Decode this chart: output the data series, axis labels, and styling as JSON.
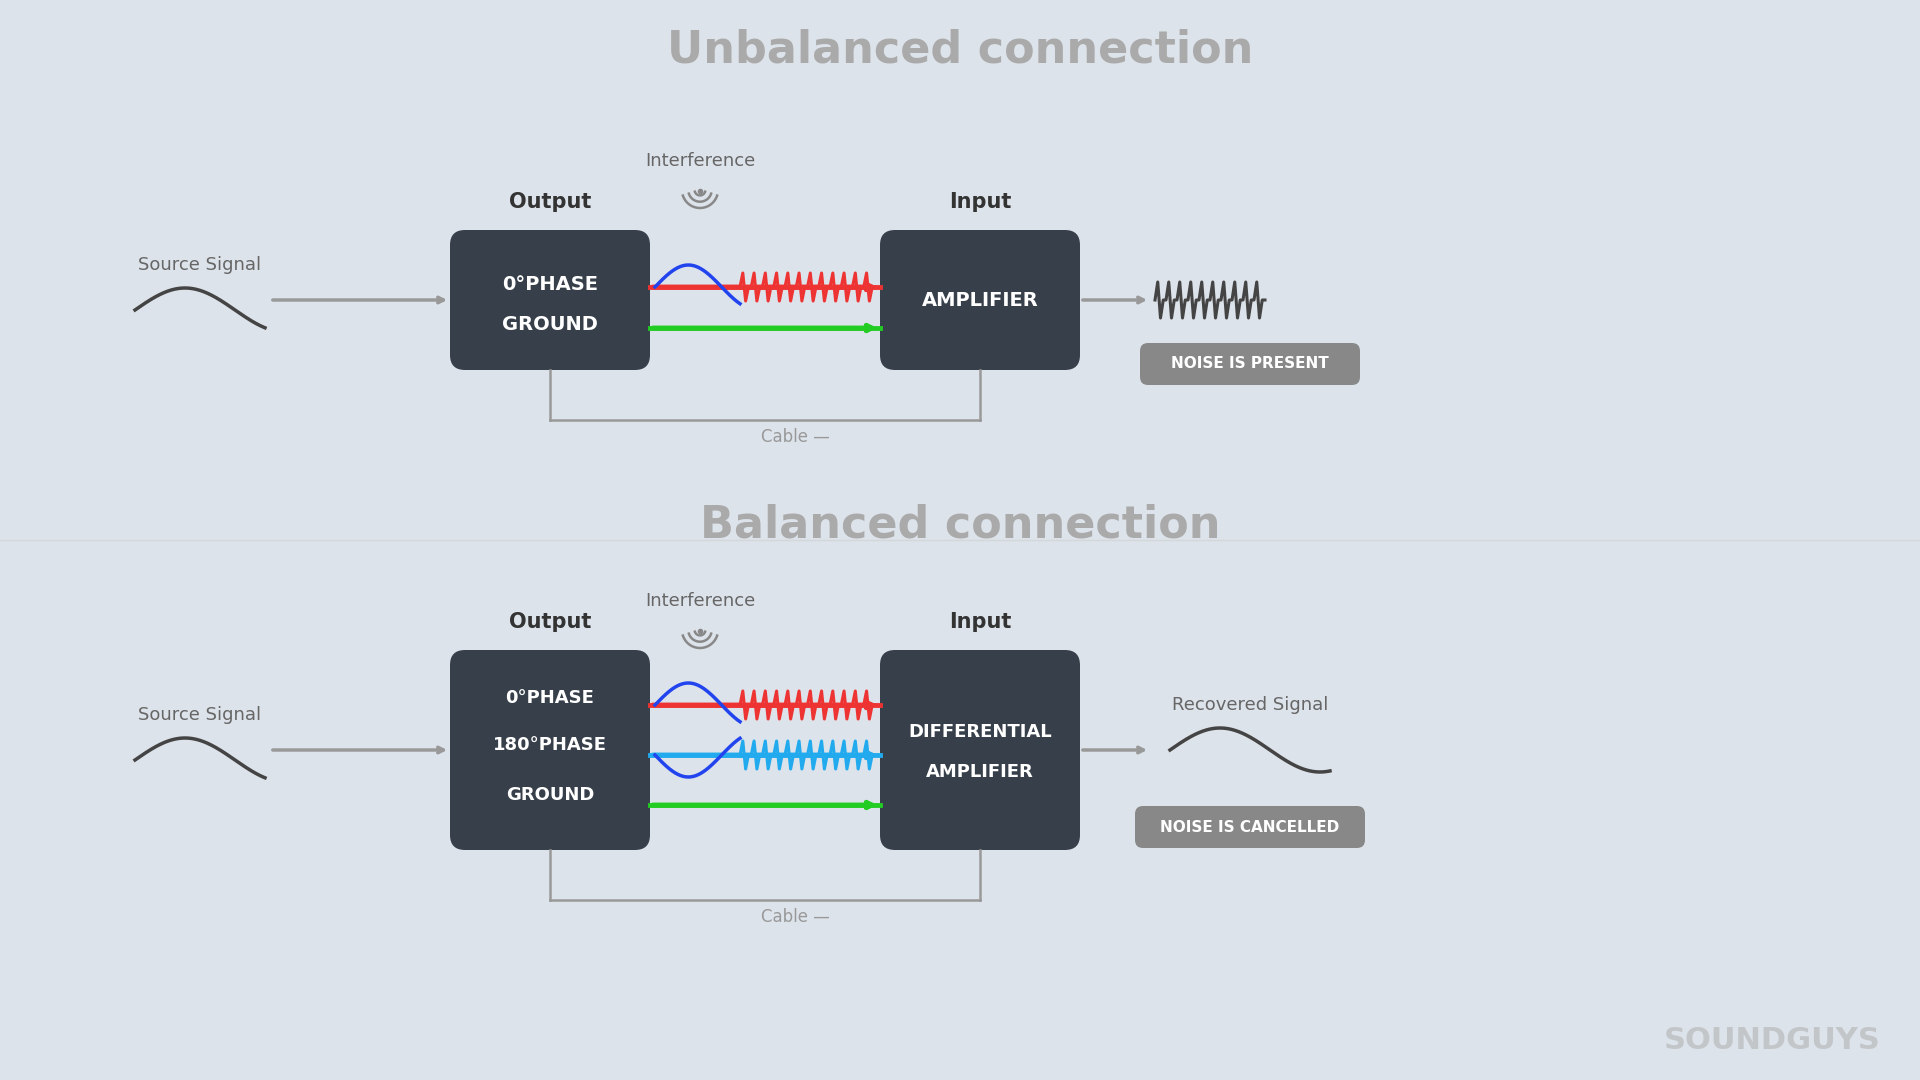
{
  "bg_color": "#dde3ea",
  "box_color": "#37404a",
  "box_text_color": "#ffffff",
  "title_color": "#aaaaaa",
  "label_color": "#666666",
  "arrow_color": "#999999",
  "cable_color": "#999999",
  "red_color": "#ee3333",
  "green_color": "#22cc22",
  "blue_color": "#2244ee",
  "cyan_color": "#22aaee",
  "noise_color": "#888888",
  "unbalanced_title": "Unbalanced connection",
  "balanced_title": "Balanced connection",
  "interference_label": "Interference",
  "output_label": "Output",
  "input_label": "Input",
  "source_signal_label": "Source Signal",
  "cable_label": "Cable",
  "recovered_signal_label": "Recovered Signal",
  "unbal_box1_lines": [
    "0°PHASE",
    "GROUND"
  ],
  "unbal_box2_lines": [
    "AMPLIFIER"
  ],
  "bal_box1_lines": [
    "0°PHASE",
    "180°PHASE",
    "GROUND"
  ],
  "bal_box2_lines": [
    "DIFFERENTIAL",
    "AMPLIFIER"
  ],
  "noise_present_label": "NOISE IS PRESENT",
  "noise_cancelled_label": "NOISE IS CANCELLED",
  "soundguys_text": "SOUNDGUYS"
}
